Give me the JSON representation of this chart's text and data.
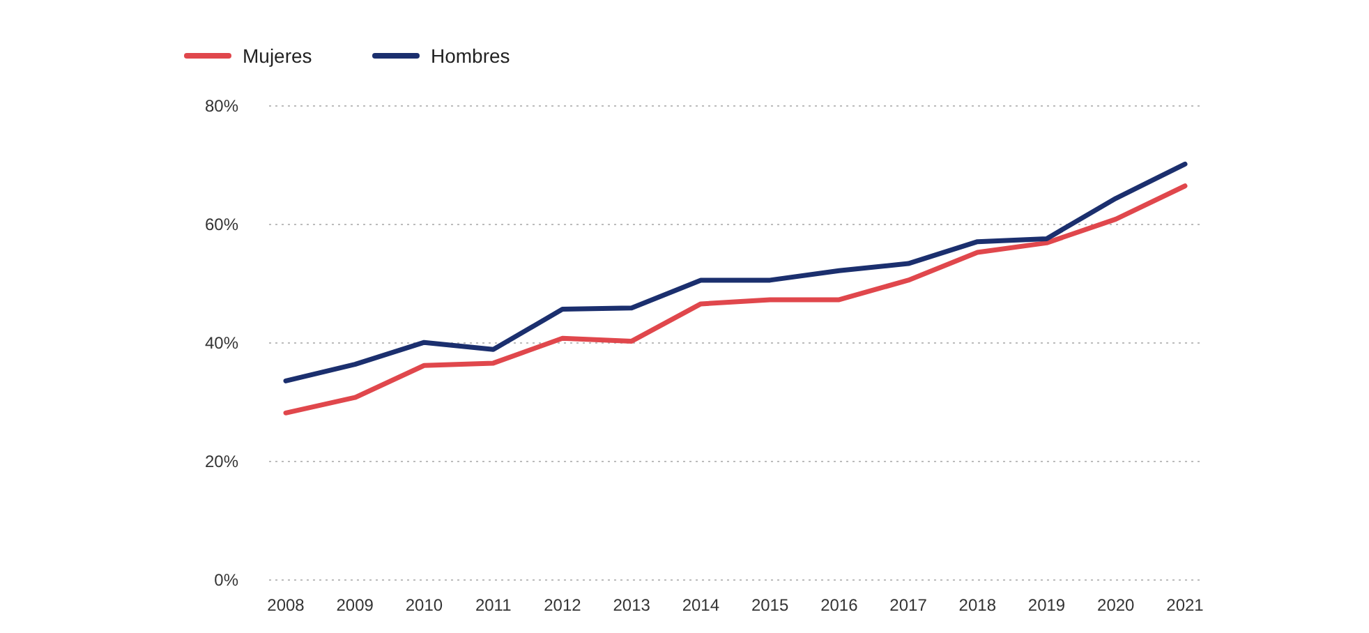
{
  "chart_data": {
    "type": "line",
    "categories": [
      "2008",
      "2009",
      "2010",
      "2011",
      "2012",
      "2013",
      "2014",
      "2015",
      "2016",
      "2017",
      "2018",
      "2019",
      "2020",
      "2021"
    ],
    "series": [
      {
        "name": "Mujeres",
        "color": "#e0474c",
        "values": [
          28.2,
          30.8,
          36.2,
          36.6,
          40.8,
          40.3,
          46.6,
          47.3,
          47.3,
          50.6,
          55.3,
          56.9,
          60.9,
          66.5
        ]
      },
      {
        "name": "Hombres",
        "color": "#1b2f6e",
        "values": [
          33.6,
          36.4,
          40.1,
          38.9,
          45.7,
          45.9,
          50.6,
          50.6,
          52.2,
          53.4,
          57.1,
          57.6,
          64.4,
          70.2
        ]
      }
    ],
    "ylim": [
      0,
      80
    ],
    "yticks": [
      {
        "value": 0,
        "label": "0%"
      },
      {
        "value": 20,
        "label": "20%"
      },
      {
        "value": 40,
        "label": "40%"
      },
      {
        "value": 60,
        "label": "60%"
      },
      {
        "value": 80,
        "label": "80%"
      }
    ],
    "grid": "y",
    "legend": "top left",
    "marker": "none",
    "line_style": "solid"
  }
}
